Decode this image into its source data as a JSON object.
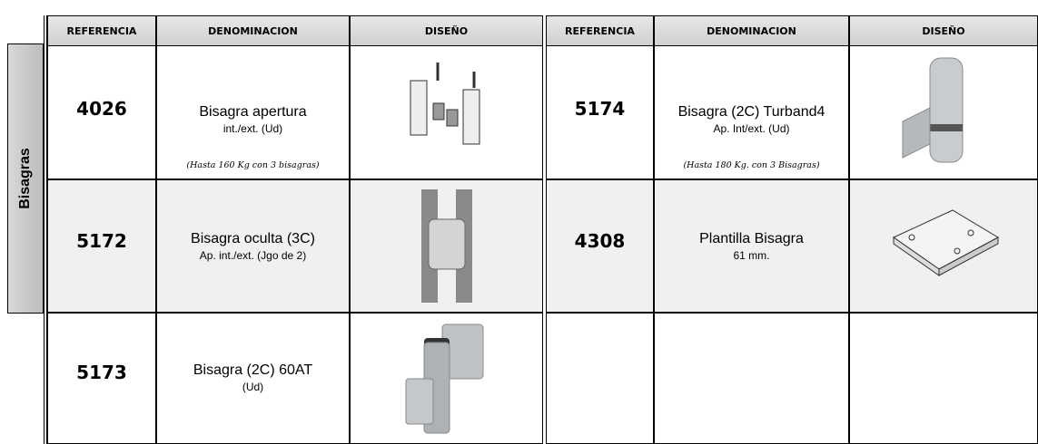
{
  "side_label": "Bisagras",
  "headers": [
    "REFERENCIA",
    "DENOMINACION",
    "DISEÑO",
    "REFERENCIA",
    "DENOMINACION",
    "DISEÑO"
  ],
  "left": [
    {
      "reference": "4026",
      "name": "Bisagra apertura",
      "detail": "int./ext. (Ud)",
      "note": "(Hasta 160 Kg con 3 bisagras)"
    },
    {
      "reference": "5172",
      "name": "Bisagra oculta (3C)",
      "detail": "Ap. int./ext. (Jgo de 2)"
    },
    {
      "reference": "5173",
      "name": "Bisagra (2C) 60AT",
      "detail": "(Ud)"
    }
  ],
  "right": [
    {
      "reference": "5174",
      "name": "Bisagra (2C) Turband4",
      "detail": "Ap. Int/ext. (Ud)",
      "note": "(Hasta 180 Kg. con 3 Bisagras)"
    },
    {
      "reference": "4308",
      "name": "Plantilla Bisagra",
      "detail": "61 mm."
    }
  ]
}
